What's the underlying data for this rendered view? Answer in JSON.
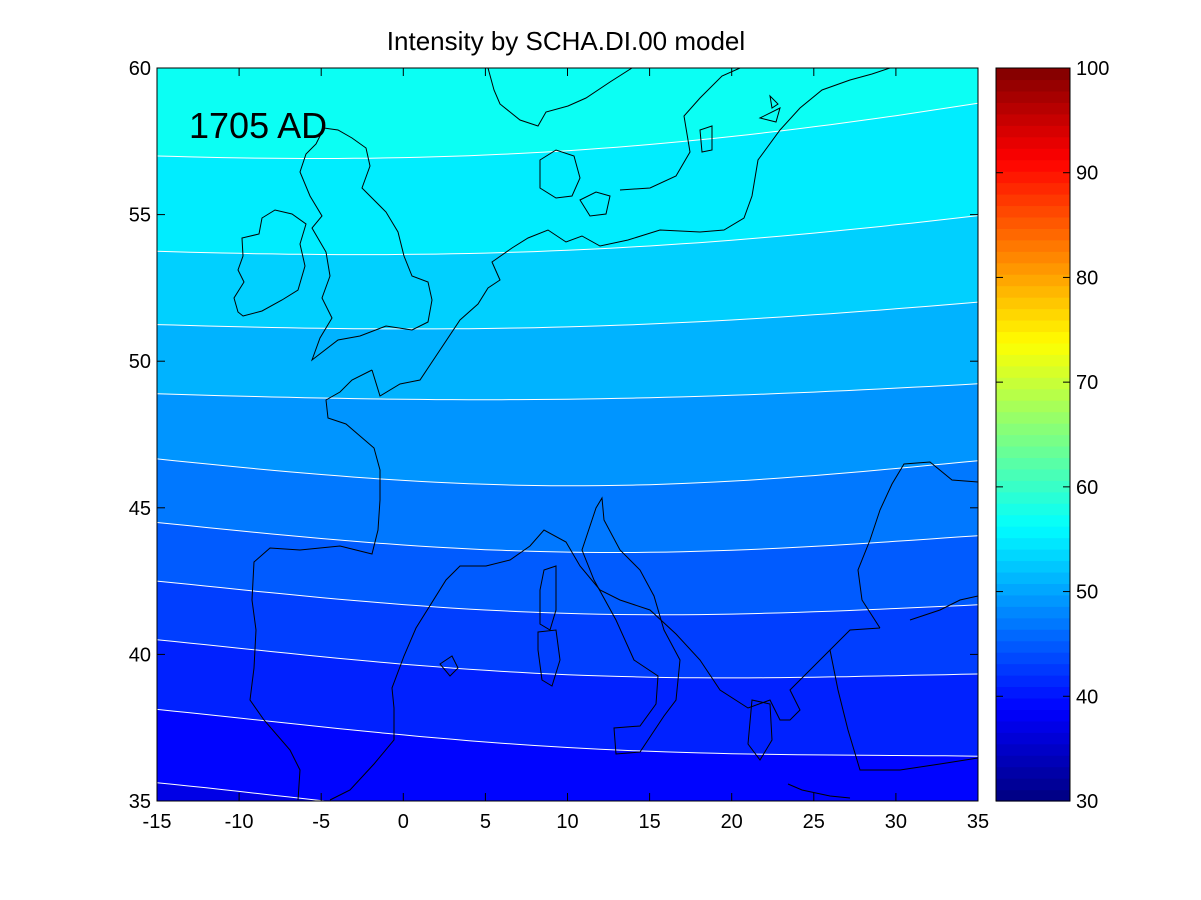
{
  "chart_data": {
    "type": "heatmap",
    "title": "Intensity by SCHA.DI.00 model",
    "annotation": "1705 AD",
    "xlabel": "",
    "ylabel": "",
    "x_ticks": [
      "-15",
      "-10",
      "-5",
      "0",
      "5",
      "10",
      "15",
      "20",
      "25",
      "30",
      "35"
    ],
    "y_ticks": [
      "60",
      "55",
      "50",
      "45",
      "40",
      "35"
    ],
    "xlim": [
      -15,
      35
    ],
    "ylim": [
      35,
      60
    ],
    "colorbar": {
      "range": [
        30,
        100
      ],
      "ticks": [
        "100",
        "90",
        "80",
        "70",
        "60",
        "50",
        "40",
        "30"
      ],
      "colormap": "jet"
    },
    "contour_levels": [
      38,
      40,
      42,
      44,
      46,
      48,
      50,
      52,
      54,
      56
    ],
    "contour_line_color": "#ffffff",
    "coastline_color": "#000000",
    "grid": false,
    "value_samples": [
      {
        "lat": 35,
        "lon": -15,
        "value": 37.5
      },
      {
        "lat": 40,
        "lon": -15,
        "value": 41.5
      },
      {
        "lat": 45,
        "lon": -15,
        "value": 46.5
      },
      {
        "lat": 50,
        "lon": -15,
        "value": 51.0
      },
      {
        "lat": 55,
        "lon": -15,
        "value": 55.0
      },
      {
        "lat": 60,
        "lon": -15,
        "value": 57.5
      },
      {
        "lat": 60,
        "lon": 5,
        "value": 58.5
      },
      {
        "lat": 60,
        "lon": 35,
        "value": 53.5
      },
      {
        "lat": 35,
        "lon": 35,
        "value": 39.5
      }
    ]
  }
}
